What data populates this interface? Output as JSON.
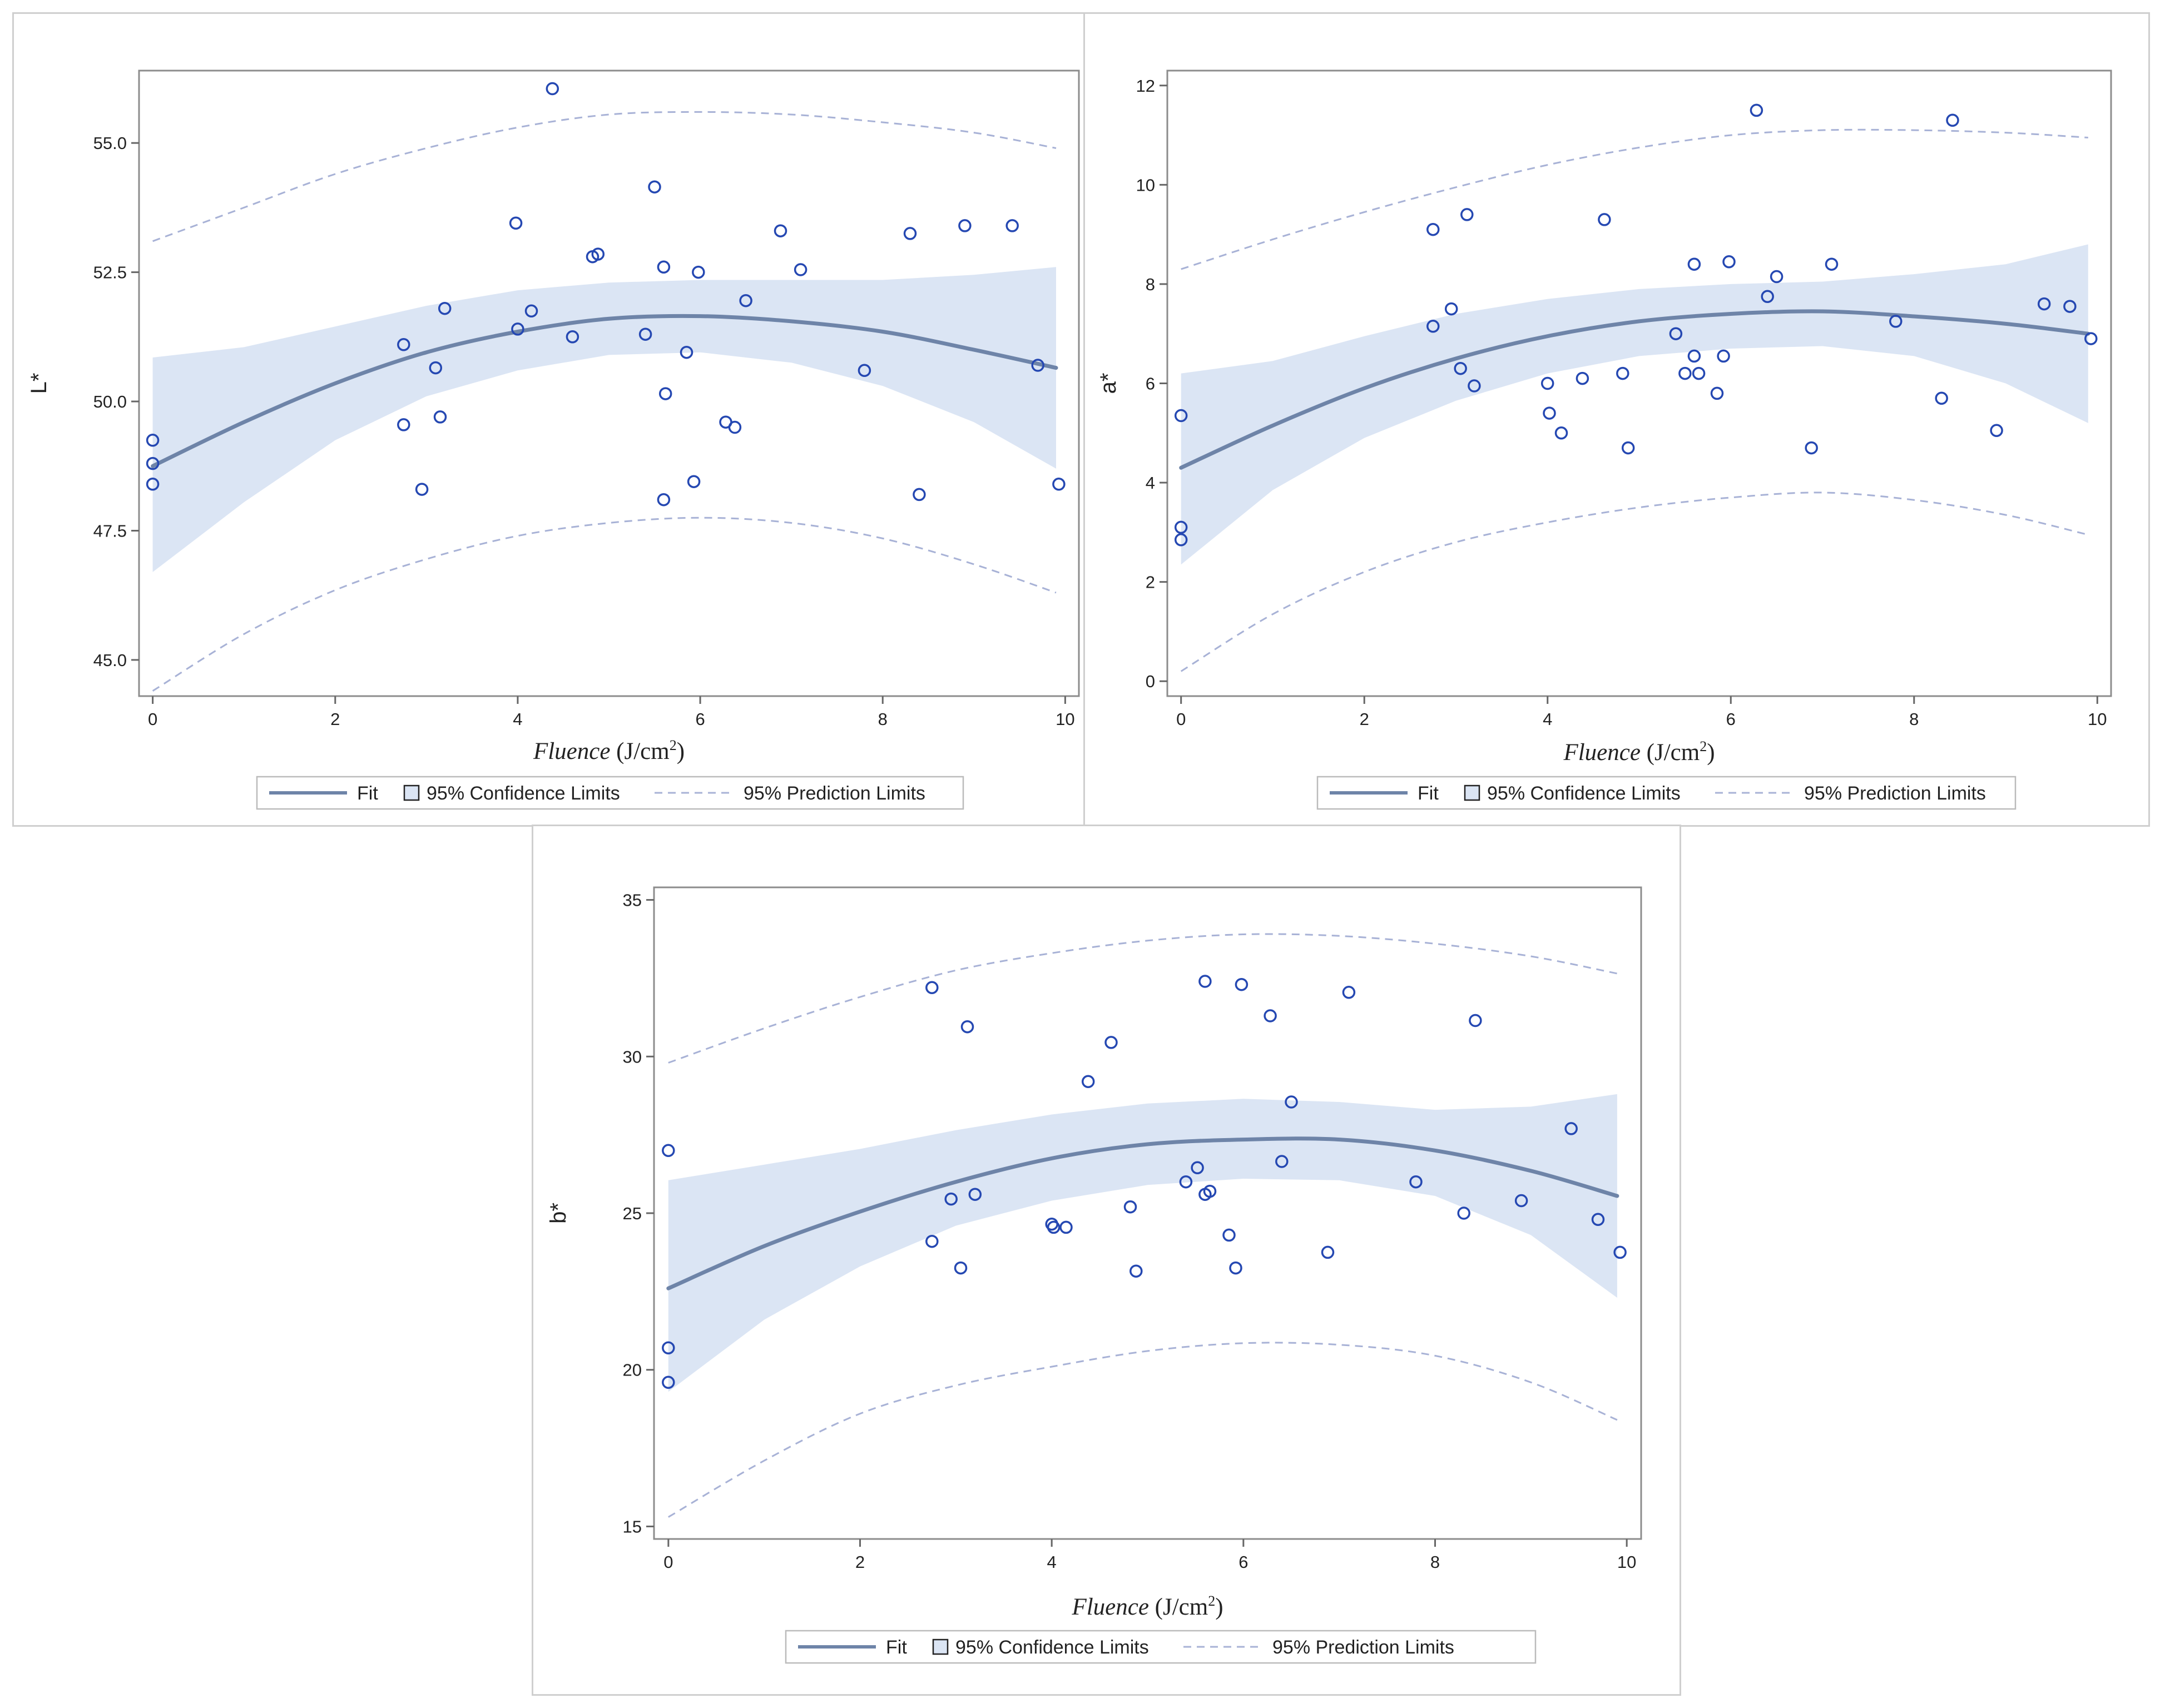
{
  "legend": {
    "fit": "Fit",
    "confidence": "95% Confidence Limits",
    "prediction": "95% Prediction Limits"
  },
  "colors": {
    "fit": "#6e84a8",
    "band": "#dbe5f4",
    "marker": "#2548b2",
    "prediction": "#a8b2d6",
    "frame": "#8c8c8c"
  },
  "chart_data": [
    {
      "type": "scatter",
      "title": "",
      "ylabel": "L*",
      "xlabel_italic": "Fluence",
      "xlabel_unit_pre": " (J/cm",
      "xlabel_sup": "2",
      "xlabel_unit_post": ")",
      "xlim": [
        -0.15,
        10.15
      ],
      "ylim": [
        44.3,
        56.4
      ],
      "xticks": [
        0,
        2,
        4,
        6,
        8,
        10
      ],
      "xtick_labels": [
        "0",
        "2",
        "4",
        "6",
        "8",
        "10"
      ],
      "yticks": [
        45.0,
        47.5,
        50.0,
        52.5,
        55.0
      ],
      "ytick_labels": [
        "45.0",
        "47.5",
        "50.0",
        "52.5",
        "55.0"
      ],
      "points": [
        [
          0,
          49.25
        ],
        [
          0,
          48.8
        ],
        [
          0,
          48.4
        ],
        [
          2.75,
          51.1
        ],
        [
          2.75,
          49.55
        ],
        [
          2.95,
          48.3
        ],
        [
          3.1,
          50.65
        ],
        [
          3.15,
          49.7
        ],
        [
          3.2,
          51.8
        ],
        [
          3.98,
          53.45
        ],
        [
          4.0,
          51.4
        ],
        [
          4.15,
          51.75
        ],
        [
          4.38,
          56.05
        ],
        [
          4.6,
          51.25
        ],
        [
          4.82,
          52.8
        ],
        [
          4.88,
          52.85
        ],
        [
          5.4,
          51.3
        ],
        [
          5.5,
          54.15
        ],
        [
          5.6,
          52.6
        ],
        [
          5.62,
          50.15
        ],
        [
          5.6,
          48.1
        ],
        [
          5.85,
          50.95
        ],
        [
          5.93,
          48.45
        ],
        [
          5.98,
          52.5
        ],
        [
          6.28,
          49.6
        ],
        [
          6.38,
          49.5
        ],
        [
          6.5,
          51.95
        ],
        [
          6.88,
          53.3
        ],
        [
          7.1,
          52.55
        ],
        [
          7.8,
          50.6
        ],
        [
          8.3,
          53.25
        ],
        [
          8.4,
          48.2
        ],
        [
          8.9,
          53.4
        ],
        [
          9.42,
          53.4
        ],
        [
          9.7,
          50.7
        ],
        [
          9.93,
          48.4
        ]
      ],
      "fit": [
        [
          0,
          48.75
        ],
        [
          1,
          49.6
        ],
        [
          2,
          50.35
        ],
        [
          3,
          50.95
        ],
        [
          4,
          51.35
        ],
        [
          5,
          51.6
        ],
        [
          6,
          51.65
        ],
        [
          7,
          51.55
        ],
        [
          8,
          51.35
        ],
        [
          9,
          51.0
        ],
        [
          9.9,
          50.65
        ]
      ],
      "ci_upper": [
        [
          0,
          50.85
        ],
        [
          1,
          51.05
        ],
        [
          2,
          51.45
        ],
        [
          3,
          51.85
        ],
        [
          4,
          52.15
        ],
        [
          5,
          52.3
        ],
        [
          6,
          52.35
        ],
        [
          7,
          52.35
        ],
        [
          8,
          52.35
        ],
        [
          9,
          52.45
        ],
        [
          9.9,
          52.6
        ]
      ],
      "ci_lower": [
        [
          0,
          46.7
        ],
        [
          1,
          48.05
        ],
        [
          2,
          49.25
        ],
        [
          3,
          50.1
        ],
        [
          4,
          50.6
        ],
        [
          5,
          50.9
        ],
        [
          6,
          50.95
        ],
        [
          7,
          50.75
        ],
        [
          8,
          50.3
        ],
        [
          9,
          49.6
        ],
        [
          9.9,
          48.7
        ]
      ],
      "pi_upper": [
        [
          0,
          53.1
        ],
        [
          1,
          53.75
        ],
        [
          2,
          54.4
        ],
        [
          3,
          54.9
        ],
        [
          4,
          55.3
        ],
        [
          5,
          55.55
        ],
        [
          6,
          55.6
        ],
        [
          7,
          55.55
        ],
        [
          8,
          55.4
        ],
        [
          9,
          55.2
        ],
        [
          9.9,
          54.9
        ]
      ],
      "pi_lower": [
        [
          0,
          44.4
        ],
        [
          1,
          45.5
        ],
        [
          2,
          46.35
        ],
        [
          3,
          46.95
        ],
        [
          4,
          47.4
        ],
        [
          5,
          47.65
        ],
        [
          6,
          47.75
        ],
        [
          7,
          47.65
        ],
        [
          8,
          47.35
        ],
        [
          9,
          46.85
        ],
        [
          9.9,
          46.3
        ]
      ]
    },
    {
      "type": "scatter",
      "title": "",
      "ylabel": "a*",
      "xlabel_italic": "Fluence",
      "xlabel_unit_pre": " (J/cm",
      "xlabel_sup": "2",
      "xlabel_unit_post": ")",
      "xlim": [
        -0.15,
        10.15
      ],
      "ylim": [
        -0.3,
        12.3
      ],
      "xticks": [
        0,
        2,
        4,
        6,
        8,
        10
      ],
      "xtick_labels": [
        "0",
        "2",
        "4",
        "6",
        "8",
        "10"
      ],
      "yticks": [
        0,
        2,
        4,
        6,
        8,
        10,
        12
      ],
      "ytick_labels": [
        "0",
        "2",
        "4",
        "6",
        "8",
        "10",
        "12"
      ],
      "points": [
        [
          0,
          5.35
        ],
        [
          0,
          3.1
        ],
        [
          0,
          2.85
        ],
        [
          2.75,
          9.1
        ],
        [
          2.75,
          7.15
        ],
        [
          2.95,
          7.5
        ],
        [
          3.05,
          6.3
        ],
        [
          3.12,
          9.4
        ],
        [
          3.2,
          5.95
        ],
        [
          4.0,
          6.0
        ],
        [
          4.02,
          5.4
        ],
        [
          4.15,
          5.0
        ],
        [
          4.38,
          6.1
        ],
        [
          4.62,
          9.3
        ],
        [
          4.82,
          6.2
        ],
        [
          4.88,
          4.7
        ],
        [
          5.4,
          7.0
        ],
        [
          5.5,
          6.2
        ],
        [
          5.6,
          8.4
        ],
        [
          5.6,
          6.55
        ],
        [
          5.65,
          6.2
        ],
        [
          5.85,
          5.8
        ],
        [
          5.92,
          6.55
        ],
        [
          5.98,
          8.45
        ],
        [
          6.28,
          11.5
        ],
        [
          6.4,
          7.75
        ],
        [
          6.5,
          8.15
        ],
        [
          6.88,
          4.7
        ],
        [
          7.1,
          8.4
        ],
        [
          7.8,
          7.25
        ],
        [
          8.3,
          5.7
        ],
        [
          8.42,
          11.3
        ],
        [
          8.9,
          5.05
        ],
        [
          9.42,
          7.6
        ],
        [
          9.7,
          7.55
        ],
        [
          9.93,
          6.9
        ]
      ],
      "fit": [
        [
          0,
          4.3
        ],
        [
          1,
          5.15
        ],
        [
          2,
          5.9
        ],
        [
          3,
          6.5
        ],
        [
          4,
          6.95
        ],
        [
          5,
          7.25
        ],
        [
          6,
          7.4
        ],
        [
          7,
          7.45
        ],
        [
          8,
          7.35
        ],
        [
          9,
          7.2
        ],
        [
          9.9,
          7.0
        ]
      ],
      "ci_upper": [
        [
          0,
          6.2
        ],
        [
          1,
          6.45
        ],
        [
          2,
          6.95
        ],
        [
          3,
          7.4
        ],
        [
          4,
          7.7
        ],
        [
          5,
          7.9
        ],
        [
          6,
          8.0
        ],
        [
          7,
          8.05
        ],
        [
          8,
          8.2
        ],
        [
          9,
          8.4
        ],
        [
          9.9,
          8.8
        ]
      ],
      "ci_lower": [
        [
          0,
          2.35
        ],
        [
          1,
          3.85
        ],
        [
          2,
          4.9
        ],
        [
          3,
          5.65
        ],
        [
          4,
          6.2
        ],
        [
          5,
          6.55
        ],
        [
          6,
          6.7
        ],
        [
          7,
          6.75
        ],
        [
          8,
          6.55
        ],
        [
          9,
          6.0
        ],
        [
          9.9,
          5.2
        ]
      ],
      "pi_upper": [
        [
          0,
          8.3
        ],
        [
          1,
          8.9
        ],
        [
          2,
          9.45
        ],
        [
          3,
          9.95
        ],
        [
          4,
          10.4
        ],
        [
          5,
          10.75
        ],
        [
          6,
          11.0
        ],
        [
          7,
          11.1
        ],
        [
          8,
          11.1
        ],
        [
          9,
          11.05
        ],
        [
          9.9,
          10.95
        ]
      ],
      "pi_lower": [
        [
          0,
          0.2
        ],
        [
          1,
          1.35
        ],
        [
          2,
          2.2
        ],
        [
          3,
          2.8
        ],
        [
          4,
          3.2
        ],
        [
          5,
          3.5
        ],
        [
          6,
          3.7
        ],
        [
          7,
          3.8
        ],
        [
          8,
          3.65
        ],
        [
          9,
          3.35
        ],
        [
          9.9,
          2.95
        ]
      ]
    },
    {
      "type": "scatter",
      "title": "",
      "ylabel": "b*",
      "xlabel_italic": "Fluence",
      "xlabel_unit_pre": " (J/cm",
      "xlabel_sup": "2",
      "xlabel_unit_post": ")",
      "xlim": [
        -0.15,
        10.15
      ],
      "ylim": [
        14.6,
        35.4
      ],
      "xticks": [
        0,
        2,
        4,
        6,
        8,
        10
      ],
      "xtick_labels": [
        "0",
        "2",
        "4",
        "6",
        "8",
        "10"
      ],
      "yticks": [
        15,
        20,
        25,
        30,
        35
      ],
      "ytick_labels": [
        "15",
        "20",
        "25",
        "30",
        "35"
      ],
      "points": [
        [
          0,
          27.0
        ],
        [
          0,
          20.7
        ],
        [
          0,
          19.6
        ],
        [
          2.75,
          32.2
        ],
        [
          2.75,
          24.1
        ],
        [
          2.95,
          25.45
        ],
        [
          3.05,
          23.25
        ],
        [
          3.12,
          30.95
        ],
        [
          3.2,
          25.6
        ],
        [
          4.0,
          24.65
        ],
        [
          4.02,
          24.55
        ],
        [
          4.15,
          24.55
        ],
        [
          4.38,
          29.2
        ],
        [
          4.62,
          30.45
        ],
        [
          4.82,
          25.2
        ],
        [
          4.88,
          23.15
        ],
        [
          5.4,
          26.0
        ],
        [
          5.52,
          26.45
        ],
        [
          5.6,
          25.6
        ],
        [
          5.65,
          25.7
        ],
        [
          5.6,
          32.4
        ],
        [
          5.85,
          24.3
        ],
        [
          5.92,
          23.25
        ],
        [
          5.98,
          32.3
        ],
        [
          6.28,
          31.3
        ],
        [
          6.4,
          26.65
        ],
        [
          6.5,
          28.55
        ],
        [
          6.88,
          23.75
        ],
        [
          7.1,
          32.05
        ],
        [
          7.8,
          26.0
        ],
        [
          8.3,
          25.0
        ],
        [
          8.42,
          31.15
        ],
        [
          8.9,
          25.4
        ],
        [
          9.42,
          27.7
        ],
        [
          9.7,
          24.8
        ],
        [
          9.93,
          23.75
        ]
      ],
      "fit": [
        [
          0,
          22.6
        ],
        [
          1,
          23.95
        ],
        [
          2,
          25.05
        ],
        [
          3,
          26.0
        ],
        [
          4,
          26.75
        ],
        [
          5,
          27.2
        ],
        [
          6,
          27.35
        ],
        [
          7,
          27.35
        ],
        [
          8,
          27.0
        ],
        [
          9,
          26.35
        ],
        [
          9.9,
          25.55
        ]
      ],
      "ci_upper": [
        [
          0,
          26.05
        ],
        [
          1,
          26.55
        ],
        [
          2,
          27.05
        ],
        [
          3,
          27.65
        ],
        [
          4,
          28.15
        ],
        [
          5,
          28.5
        ],
        [
          6,
          28.65
        ],
        [
          7,
          28.55
        ],
        [
          8,
          28.3
        ],
        [
          9,
          28.4
        ],
        [
          9.9,
          28.8
        ]
      ],
      "ci_lower": [
        [
          0,
          19.3
        ],
        [
          1,
          21.6
        ],
        [
          2,
          23.3
        ],
        [
          3,
          24.6
        ],
        [
          4,
          25.4
        ],
        [
          5,
          25.9
        ],
        [
          6,
          26.1
        ],
        [
          7,
          26.05
        ],
        [
          8,
          25.55
        ],
        [
          9,
          24.3
        ],
        [
          9.9,
          22.3
        ]
      ],
      "pi_upper": [
        [
          0,
          29.8
        ],
        [
          1,
          30.9
        ],
        [
          2,
          31.9
        ],
        [
          3,
          32.75
        ],
        [
          4,
          33.3
        ],
        [
          5,
          33.7
        ],
        [
          6,
          33.9
        ],
        [
          7,
          33.85
        ],
        [
          8,
          33.6
        ],
        [
          9,
          33.2
        ],
        [
          9.9,
          32.65
        ]
      ],
      "pi_lower": [
        [
          0,
          15.3
        ],
        [
          1,
          17.1
        ],
        [
          2,
          18.6
        ],
        [
          3,
          19.5
        ],
        [
          4,
          20.1
        ],
        [
          5,
          20.6
        ],
        [
          6,
          20.85
        ],
        [
          7,
          20.8
        ],
        [
          8,
          20.45
        ],
        [
          9,
          19.6
        ],
        [
          9.9,
          18.4
        ]
      ]
    }
  ]
}
